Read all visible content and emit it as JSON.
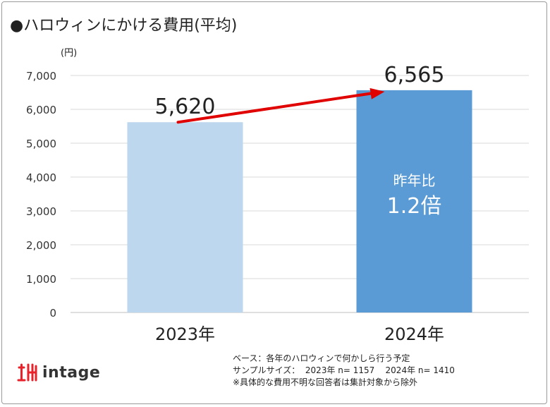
{
  "title": "●ハロウィンにかける費用(平均)",
  "chart_data": {
    "type": "bar",
    "title": "ハロウィンにかける費用(平均)",
    "ylabel": "(円)",
    "xlabel": "",
    "categories": [
      "2023年",
      "2024年"
    ],
    "values": [
      5620,
      6565
    ],
    "value_labels": [
      "5,620",
      "6,565"
    ],
    "ylim": [
      0,
      7000
    ],
    "yticks": [
      0,
      1000,
      2000,
      3000,
      4000,
      5000,
      6000,
      7000
    ],
    "ytick_labels": [
      "0",
      "1,000",
      "2,000",
      "3,000",
      "4,000",
      "5,000",
      "6,000",
      "7,000"
    ],
    "grid": true,
    "bar_colors": [
      "#bdd7ee",
      "#5b9bd5"
    ],
    "arrow_color": "#e00000",
    "annotation": {
      "line1": "昨年比",
      "line2": "1.2倍"
    }
  },
  "notes": [
    "ベース：各年のハロウィンで何かしら行う予定",
    "サンプルサイズ：  2023年 n= 1157    2024年 n= 1410",
    "※具体的な費用不明な回答者は集計対象から除外"
  ],
  "logo": {
    "text": "intage",
    "color": "#e8222a"
  }
}
